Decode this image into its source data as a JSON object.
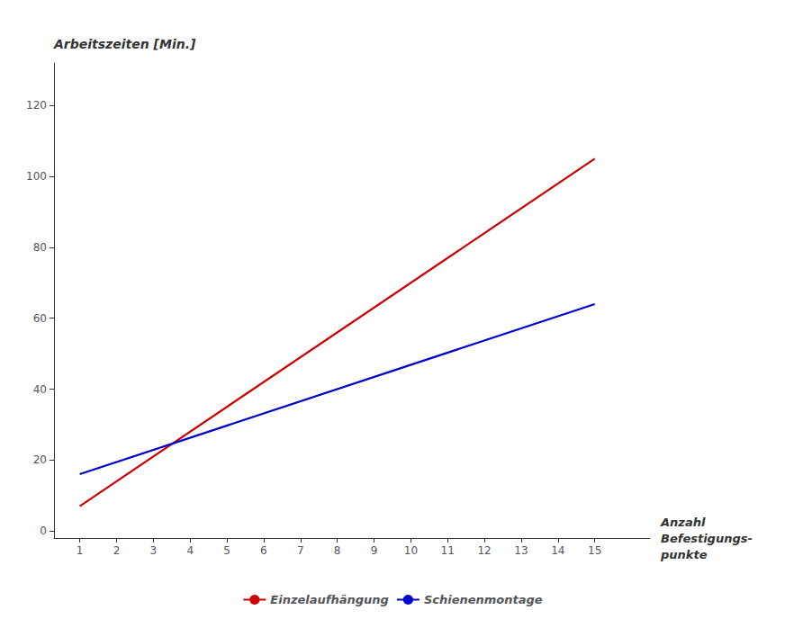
{
  "chart_data": {
    "type": "line",
    "xlabel": "Anzahl\nBefestigungs-\npunkte",
    "ylabel": "Arbeitszeiten [Min.]",
    "x": [
      1,
      15
    ],
    "series": [
      {
        "name": "Einzelaufhängung",
        "color": "#cc0000",
        "values": [
          7,
          105
        ]
      },
      {
        "name": "Schienenmontage",
        "color": "#0000cc",
        "values": [
          16,
          64
        ]
      }
    ],
    "xlim": [
      0.3,
      16.5
    ],
    "xticks": [
      1,
      2,
      3,
      4,
      5,
      6,
      7,
      8,
      9,
      10,
      11,
      12,
      13,
      14,
      15
    ],
    "ylim": [
      -2,
      132
    ],
    "yticks": [
      0,
      20,
      40,
      60,
      80,
      100,
      120
    ],
    "grid": false,
    "legend": "bottom"
  }
}
